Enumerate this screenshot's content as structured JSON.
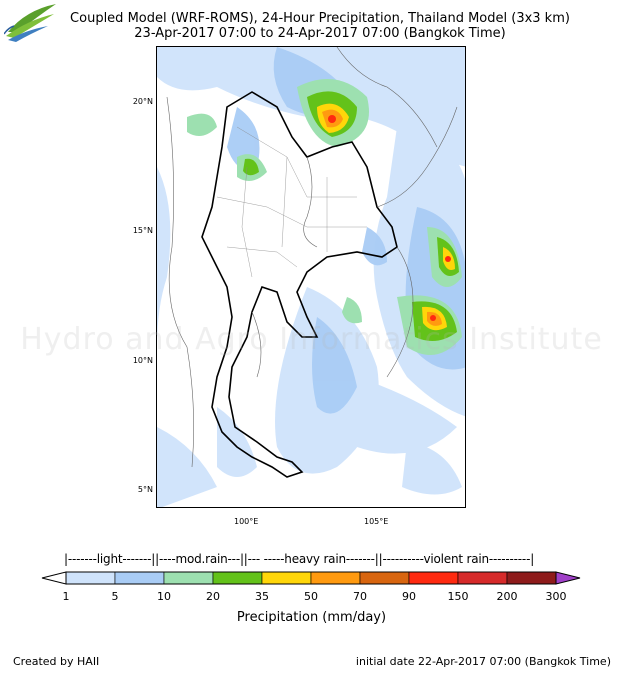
{
  "logo": {
    "name": "haii-logo",
    "text": "HAII"
  },
  "title": {
    "line1": "Coupled Model (WRF-ROMS), 24-Hour Precipitation, Thailand Model (3x3 km)",
    "line2": "23-Apr-2017 07:00 to 24-Apr-2017 07:00 (Bangkok Time)"
  },
  "map": {
    "lat_labels": [
      "20°N",
      "15°N",
      "10°N",
      "5°N"
    ],
    "lon_labels": [
      "100°E",
      "105°E"
    ],
    "watermark": "Hydro and Agro Informatics Institute"
  },
  "colorbar": {
    "categories_text": "|-------light-------||----mod.rain---||--- -----heavy rain-------||----------violent rain----------|",
    "ticks": [
      "1",
      "5",
      "10",
      "20",
      "35",
      "50",
      "70",
      "90",
      "150",
      "200",
      "300"
    ],
    "colors": [
      "#cfe3fb",
      "#a9ccf5",
      "#9de0b0",
      "#63c21a",
      "#ffd60a",
      "#ff9a10",
      "#d8650f",
      "#ff2a10",
      "#d62a2a",
      "#8e1b1b"
    ],
    "under_color": "#ffffff",
    "over_color": "#a040c8",
    "label": "Precipitation (mm/day)"
  },
  "footer": {
    "left": "Created by HAII",
    "right": "initial date 22-Apr-2017 07:00 (Bangkok Time)"
  }
}
